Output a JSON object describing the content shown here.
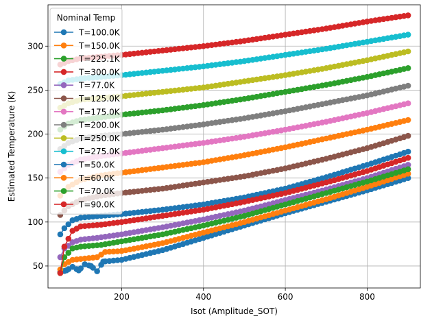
{
  "chart_data": {
    "type": "line",
    "xlabel": "Isot (Amplitude_SOT)",
    "ylabel": "Estimated Temperature (K)",
    "xlim": [
      20,
      930
    ],
    "ylim": [
      25,
      347
    ],
    "xticks": [
      200,
      400,
      600,
      800
    ],
    "yticks": [
      50,
      100,
      150,
      200,
      250,
      300
    ],
    "grid": true,
    "marker": "circle",
    "legend": {
      "title": "Nominal Temp",
      "placement": "upper left"
    },
    "series": [
      {
        "name": "T=100.0K",
        "color": "#1f77b4",
        "anchors": [
          [
            50,
            86
          ],
          [
            60,
            93
          ],
          [
            80,
            102
          ],
          [
            100,
            105
          ],
          [
            150,
            107
          ],
          [
            200,
            109
          ],
          [
            300,
            114
          ],
          [
            400,
            120
          ],
          [
            500,
            128
          ],
          [
            600,
            138
          ],
          [
            700,
            151
          ],
          [
            800,
            165
          ],
          [
            900,
            180
          ]
        ]
      },
      {
        "name": "T=150.0K",
        "color": "#ff7f0e",
        "anchors": [
          [
            50,
            130
          ],
          [
            70,
            140
          ],
          [
            100,
            148
          ],
          [
            150,
            153
          ],
          [
            200,
            156
          ],
          [
            300,
            162
          ],
          [
            400,
            168
          ],
          [
            500,
            176
          ],
          [
            600,
            185
          ],
          [
            700,
            195
          ],
          [
            800,
            205
          ],
          [
            900,
            216
          ]
        ]
      },
      {
        "name": "T=225.1K",
        "color": "#2ca02c",
        "anchors": [
          [
            50,
            205
          ],
          [
            70,
            212
          ],
          [
            100,
            216
          ],
          [
            150,
            219
          ],
          [
            200,
            222
          ],
          [
            300,
            227
          ],
          [
            400,
            233
          ],
          [
            500,
            240
          ],
          [
            600,
            248
          ],
          [
            700,
            256
          ],
          [
            800,
            265
          ],
          [
            900,
            275
          ]
        ]
      },
      {
        "name": "T=300.0K",
        "color": "#d62728",
        "anchors": [
          [
            50,
            279
          ],
          [
            70,
            283
          ],
          [
            100,
            286
          ],
          [
            150,
            288
          ],
          [
            200,
            290
          ],
          [
            300,
            295
          ],
          [
            400,
            300
          ],
          [
            500,
            306
          ],
          [
            600,
            313
          ],
          [
            700,
            320
          ],
          [
            800,
            328
          ],
          [
            900,
            335
          ]
        ]
      },
      {
        "name": "T=77.0K",
        "color": "#9467bd",
        "anchors": [
          [
            50,
            60
          ],
          [
            60,
            70
          ],
          [
            70,
            73
          ],
          [
            80,
            77
          ],
          [
            100,
            80
          ],
          [
            140,
            82
          ],
          [
            200,
            86
          ],
          [
            300,
            94
          ],
          [
            400,
            103
          ],
          [
            500,
            113
          ],
          [
            600,
            125
          ],
          [
            700,
            137
          ],
          [
            800,
            150
          ],
          [
            900,
            165
          ]
        ]
      },
      {
        "name": "T=125.0K",
        "color": "#8c564b",
        "anchors": [
          [
            50,
            108
          ],
          [
            70,
            118
          ],
          [
            100,
            125
          ],
          [
            150,
            130
          ],
          [
            200,
            133
          ],
          [
            300,
            138
          ],
          [
            400,
            145
          ],
          [
            500,
            152
          ],
          [
            600,
            161
          ],
          [
            700,
            172
          ],
          [
            800,
            184
          ],
          [
            900,
            198
          ]
        ]
      },
      {
        "name": "T=175.0K",
        "color": "#e377c2",
        "anchors": [
          [
            50,
            157
          ],
          [
            70,
            165
          ],
          [
            100,
            171
          ],
          [
            150,
            175
          ],
          [
            200,
            178
          ],
          [
            300,
            184
          ],
          [
            400,
            190
          ],
          [
            500,
            197
          ],
          [
            600,
            205
          ],
          [
            700,
            214
          ],
          [
            800,
            224
          ],
          [
            900,
            235
          ]
        ]
      },
      {
        "name": "T=200.0K",
        "color": "#7f7f7f",
        "anchors": [
          [
            50,
            183
          ],
          [
            70,
            190
          ],
          [
            100,
            195
          ],
          [
            150,
            198
          ],
          [
            200,
            200
          ],
          [
            300,
            205
          ],
          [
            400,
            211
          ],
          [
            500,
            218
          ],
          [
            600,
            226
          ],
          [
            700,
            235
          ],
          [
            800,
            244
          ],
          [
            900,
            255
          ]
        ]
      },
      {
        "name": "T=250.0K",
        "color": "#bcbd22",
        "anchors": [
          [
            50,
            230
          ],
          [
            70,
            235
          ],
          [
            100,
            239
          ],
          [
            150,
            241
          ],
          [
            200,
            243
          ],
          [
            300,
            248
          ],
          [
            400,
            253
          ],
          [
            500,
            260
          ],
          [
            600,
            267
          ],
          [
            700,
            275
          ],
          [
            800,
            284
          ],
          [
            900,
            294
          ]
        ]
      },
      {
        "name": "T=275.0K",
        "color": "#17becf",
        "anchors": [
          [
            50,
            257
          ],
          [
            70,
            261
          ],
          [
            100,
            263
          ],
          [
            150,
            265
          ],
          [
            200,
            267
          ],
          [
            300,
            272
          ],
          [
            400,
            277
          ],
          [
            500,
            283
          ],
          [
            600,
            290
          ],
          [
            700,
            297
          ],
          [
            800,
            305
          ],
          [
            900,
            313
          ]
        ]
      },
      {
        "name": "T=50.0K",
        "color": "#1f77b4",
        "anchors": [
          [
            50,
            43
          ],
          [
            65,
            45
          ],
          [
            80,
            49
          ],
          [
            95,
            45
          ],
          [
            110,
            52
          ],
          [
            125,
            50
          ],
          [
            140,
            44
          ],
          [
            155,
            55
          ],
          [
            200,
            57
          ],
          [
            300,
            68
          ],
          [
            400,
            82
          ],
          [
            500,
            96
          ],
          [
            600,
            110
          ],
          [
            700,
            123
          ],
          [
            800,
            136
          ],
          [
            900,
            150
          ]
        ]
      },
      {
        "name": "T=60.0K",
        "color": "#ff7f0e",
        "anchors": [
          [
            50,
            46
          ],
          [
            60,
            52
          ],
          [
            80,
            57
          ],
          [
            100,
            58
          ],
          [
            140,
            60
          ],
          [
            160,
            66
          ],
          [
            200,
            67
          ],
          [
            300,
            76
          ],
          [
            400,
            88
          ],
          [
            500,
            100
          ],
          [
            600,
            113
          ],
          [
            700,
            126
          ],
          [
            800,
            140
          ],
          [
            900,
            155
          ]
        ]
      },
      {
        "name": "T=70.0K",
        "color": "#2ca02c",
        "anchors": [
          [
            50,
            42
          ],
          [
            60,
            60
          ],
          [
            80,
            70
          ],
          [
            100,
            72
          ],
          [
            150,
            74
          ],
          [
            200,
            78
          ],
          [
            300,
            86
          ],
          [
            400,
            96
          ],
          [
            500,
            107
          ],
          [
            600,
            120
          ],
          [
            700,
            133
          ],
          [
            800,
            146
          ],
          [
            900,
            160
          ]
        ]
      },
      {
        "name": "T=90.0K",
        "color": "#d62728",
        "anchors": [
          [
            50,
            42
          ],
          [
            60,
            72
          ],
          [
            80,
            90
          ],
          [
            100,
            95
          ],
          [
            150,
            97
          ],
          [
            200,
            100
          ],
          [
            300,
            107
          ],
          [
            400,
            114
          ],
          [
            500,
            123
          ],
          [
            600,
            133
          ],
          [
            700,
            145
          ],
          [
            800,
            158
          ],
          [
            900,
            173
          ]
        ]
      }
    ]
  }
}
